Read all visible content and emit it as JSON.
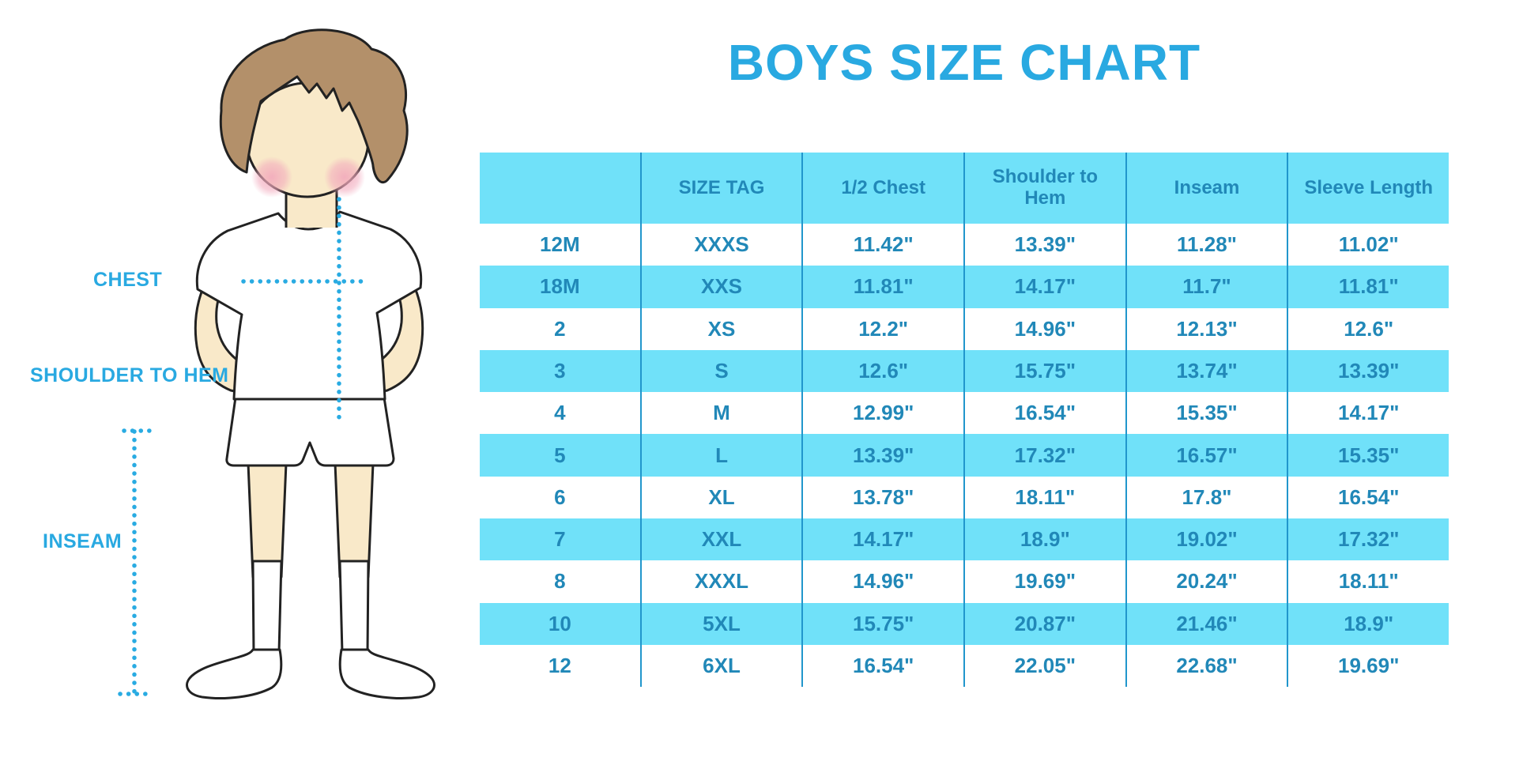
{
  "title": "BOYS SIZE CHART",
  "figure_labels": {
    "chest": "CHEST",
    "shoulder_to_hem": "SHOULDER TO HEM",
    "inseam": "INSEAM"
  },
  "table": {
    "headers": [
      "",
      "SIZE TAG",
      "1/2 Chest",
      "Shoulder to Hem",
      "Inseam",
      "Sleeve Length"
    ],
    "rows": [
      [
        "12M",
        "XXXS",
        "11.42\"",
        "13.39\"",
        "11.28\"",
        "11.02\""
      ],
      [
        "18M",
        "XXS",
        "11.81\"",
        "14.17\"",
        "11.7\"",
        "11.81\""
      ],
      [
        "2",
        "XS",
        "12.2\"",
        "14.96\"",
        "12.13\"",
        "12.6\""
      ],
      [
        "3",
        "S",
        "12.6\"",
        "15.75\"",
        "13.74\"",
        "13.39\""
      ],
      [
        "4",
        "M",
        "12.99\"",
        "16.54\"",
        "15.35\"",
        "14.17\""
      ],
      [
        "5",
        "L",
        "13.39\"",
        "17.32\"",
        "16.57\"",
        "15.35\""
      ],
      [
        "6",
        "XL",
        "13.78\"",
        "18.11\"",
        "17.8\"",
        "16.54\""
      ],
      [
        "7",
        "XXL",
        "14.17\"",
        "18.9\"",
        "19.02\"",
        "17.32\""
      ],
      [
        "8",
        "XXXL",
        "14.96\"",
        "19.69\"",
        "20.24\"",
        "18.11\""
      ],
      [
        "10",
        "5XL",
        "15.75\"",
        "20.87\"",
        "21.46\"",
        "18.9\""
      ],
      [
        "12",
        "6XL",
        "16.54\"",
        "22.05\"",
        "22.68\"",
        "19.69\""
      ]
    ]
  },
  "colors": {
    "accent_blue": "#29A9E1",
    "stripe_blue": "#70E1F9",
    "table_text_blue": "#2188B8",
    "divider_blue": "#2196CC",
    "dot_blue": "#29ABE2",
    "skin": "#F9E9C9",
    "hair_brown": "#B3906A",
    "blush_pink": "#F2A9BC"
  }
}
